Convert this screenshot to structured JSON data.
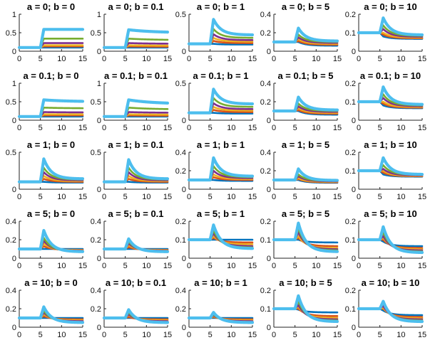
{
  "chart_data": {
    "type": "line",
    "grid": false,
    "legend": "none",
    "x_ticks": [
      0,
      5,
      10,
      15
    ],
    "xlim": [
      0,
      15
    ],
    "series_colors": [
      "#0072BD",
      "#D95319",
      "#EDB120",
      "#7E2F8E",
      "#77AC30",
      "#4DBEEE"
    ],
    "series_labels": [
      "",
      "",
      "",
      "",
      "",
      ""
    ],
    "panels": [
      {
        "title": "a = 0; b = 0",
        "ylim": [
          0,
          1
        ],
        "yticks": [
          0,
          0.5,
          1
        ],
        "base": 0.1,
        "model": "step",
        "peaks": [
          0.1,
          0.13,
          0.16,
          0.22,
          0.34,
          0.59
        ],
        "finals": [
          0.1,
          0.13,
          0.16,
          0.22,
          0.34,
          0.59
        ]
      },
      {
        "title": "a = 0; b = 0.1",
        "ylim": [
          0,
          1
        ],
        "yticks": [
          0,
          0.5,
          1
        ],
        "base": 0.1,
        "model": "step",
        "peaks": [
          0.1,
          0.13,
          0.16,
          0.22,
          0.34,
          0.58
        ],
        "finals": [
          0.1,
          0.12,
          0.15,
          0.2,
          0.3,
          0.5
        ]
      },
      {
        "title": "a = 0; b = 1",
        "ylim": [
          0,
          0.5
        ],
        "yticks": [
          0,
          0.5
        ],
        "base": 0.1,
        "model": "decay",
        "peaks": [
          0.1,
          0.14,
          0.18,
          0.23,
          0.3,
          0.43
        ],
        "finals": [
          0.09,
          0.11,
          0.13,
          0.15,
          0.18,
          0.22
        ]
      },
      {
        "title": "a = 0; b = 5",
        "ylim": [
          0,
          0.4
        ],
        "yticks": [
          0,
          0.2,
          0.4
        ],
        "base": 0.1,
        "model": "decay",
        "peaks": [
          0.1,
          0.11,
          0.13,
          0.15,
          0.18,
          0.25
        ],
        "finals": [
          0.06,
          0.07,
          0.08,
          0.09,
          0.1,
          0.11
        ]
      },
      {
        "title": "a = 0; b = 10",
        "ylim": [
          0,
          0.2
        ],
        "yticks": [
          0,
          0.1,
          0.2
        ],
        "base": 0.1,
        "model": "decay",
        "peaks": [
          0.08,
          0.09,
          0.1,
          0.12,
          0.14,
          0.18
        ],
        "finals": [
          0.067,
          0.07,
          0.074,
          0.078,
          0.083,
          0.088
        ]
      },
      {
        "title": "a = 0.1; b = 0",
        "ylim": [
          0,
          1
        ],
        "yticks": [
          0,
          0.5,
          1
        ],
        "base": 0.1,
        "model": "step",
        "peaks": [
          0.1,
          0.13,
          0.16,
          0.22,
          0.34,
          0.55
        ],
        "finals": [
          0.1,
          0.13,
          0.16,
          0.21,
          0.32,
          0.5
        ]
      },
      {
        "title": "a = 0.1; b = 0.1",
        "ylim": [
          0,
          1
        ],
        "yticks": [
          0,
          0.5,
          1
        ],
        "base": 0.1,
        "model": "step",
        "peaks": [
          0.1,
          0.13,
          0.16,
          0.22,
          0.34,
          0.55
        ],
        "finals": [
          0.1,
          0.12,
          0.15,
          0.2,
          0.29,
          0.44
        ]
      },
      {
        "title": "a = 0.1; b = 1",
        "ylim": [
          0,
          0.5
        ],
        "yticks": [
          0,
          0.5
        ],
        "base": 0.1,
        "model": "decay",
        "peaks": [
          0.1,
          0.14,
          0.18,
          0.23,
          0.3,
          0.42
        ],
        "finals": [
          0.09,
          0.11,
          0.13,
          0.15,
          0.18,
          0.22
        ]
      },
      {
        "title": "a = 0.1; b = 5",
        "ylim": [
          0,
          0.4
        ],
        "yticks": [
          0,
          0.2,
          0.4
        ],
        "base": 0.1,
        "model": "decay",
        "peaks": [
          0.1,
          0.11,
          0.13,
          0.15,
          0.18,
          0.25
        ],
        "finals": [
          0.06,
          0.07,
          0.08,
          0.09,
          0.1,
          0.11
        ]
      },
      {
        "title": "a = 0.1; b = 10",
        "ylim": [
          0,
          0.2
        ],
        "yticks": [
          0,
          0.1,
          0.2
        ],
        "base": 0.1,
        "model": "decay",
        "peaks": [
          0.08,
          0.09,
          0.1,
          0.12,
          0.14,
          0.18
        ],
        "finals": [
          0.065,
          0.068,
          0.072,
          0.076,
          0.08,
          0.085
        ]
      },
      {
        "title": "a = 1; b = 0",
        "ylim": [
          0,
          0.5
        ],
        "yticks": [
          0,
          0.5
        ],
        "base": 0.1,
        "model": "decay",
        "peaks": [
          0.1,
          0.14,
          0.18,
          0.23,
          0.29,
          0.41
        ],
        "finals": [
          0.09,
          0.1,
          0.11,
          0.12,
          0.13,
          0.14
        ]
      },
      {
        "title": "a = 1; b = 0.1",
        "ylim": [
          0,
          0.5
        ],
        "yticks": [
          0,
          0.5
        ],
        "base": 0.1,
        "model": "decay",
        "peaks": [
          0.1,
          0.14,
          0.18,
          0.23,
          0.29,
          0.4
        ],
        "finals": [
          0.09,
          0.1,
          0.11,
          0.12,
          0.13,
          0.14
        ]
      },
      {
        "title": "a = 1; b = 1",
        "ylim": [
          0,
          0.4
        ],
        "yticks": [
          0,
          0.2,
          0.4
        ],
        "base": 0.1,
        "model": "decay",
        "peaks": [
          0.1,
          0.13,
          0.16,
          0.2,
          0.25,
          0.34
        ],
        "finals": [
          0.09,
          0.1,
          0.11,
          0.12,
          0.13,
          0.14
        ]
      },
      {
        "title": "a = 1; b = 5",
        "ylim": [
          0,
          0.4
        ],
        "yticks": [
          0,
          0.2,
          0.4
        ],
        "base": 0.1,
        "model": "decay",
        "peaks": [
          0.1,
          0.11,
          0.12,
          0.14,
          0.16,
          0.22
        ],
        "finals": [
          0.07,
          0.075,
          0.08,
          0.085,
          0.09,
          0.095
        ]
      },
      {
        "title": "a = 1; b = 10",
        "ylim": [
          0,
          0.2
        ],
        "yticks": [
          0,
          0.1,
          0.2
        ],
        "base": 0.1,
        "model": "decay",
        "peaks": [
          0.08,
          0.09,
          0.1,
          0.11,
          0.13,
          0.17
        ],
        "finals": [
          0.068,
          0.07,
          0.072,
          0.075,
          0.078,
          0.08
        ]
      },
      {
        "title": "a = 5; b = 0",
        "ylim": [
          0,
          0.4
        ],
        "yticks": [
          0,
          0.2,
          0.4
        ],
        "base": 0.1,
        "model": "decay",
        "peaks": [
          0.1,
          0.13,
          0.16,
          0.19,
          0.22,
          0.3
        ],
        "finals": [
          0.1,
          0.09,
          0.085,
          0.08,
          0.075,
          0.07
        ]
      },
      {
        "title": "a = 5; b = 0.1",
        "ylim": [
          0,
          0.4
        ],
        "yticks": [
          0,
          0.2,
          0.4
        ],
        "base": 0.1,
        "model": "decay",
        "peaks": [
          0.1,
          0.12,
          0.14,
          0.16,
          0.18,
          0.21
        ],
        "finals": [
          0.1,
          0.09,
          0.085,
          0.08,
          0.075,
          0.07
        ]
      },
      {
        "title": "a = 5; b = 1",
        "ylim": [
          0,
          0.2
        ],
        "yticks": [
          0,
          0.1,
          0.2
        ],
        "base": 0.1,
        "model": "decay",
        "peaks": [
          0.1,
          0.11,
          0.12,
          0.135,
          0.15,
          0.18
        ],
        "finals": [
          0.1,
          0.085,
          0.075,
          0.065,
          0.058,
          0.052
        ]
      },
      {
        "title": "a = 5; b = 5",
        "ylim": [
          0,
          0.2
        ],
        "yticks": [
          0,
          0.1,
          0.2
        ],
        "base": 0.1,
        "model": "decay",
        "peaks": [
          0.1,
          0.11,
          0.12,
          0.14,
          0.16,
          0.19
        ],
        "finals": [
          0.085,
          0.065,
          0.055,
          0.048,
          0.042,
          0.035
        ]
      },
      {
        "title": "a = 5; b = 10",
        "ylim": [
          0,
          0.2
        ],
        "yticks": [
          0,
          0.1,
          0.2
        ],
        "base": 0.1,
        "model": "decay",
        "peaks": [
          0.09,
          0.1,
          0.11,
          0.12,
          0.14,
          0.17
        ],
        "finals": [
          0.065,
          0.055,
          0.048,
          0.042,
          0.036,
          0.03
        ]
      },
      {
        "title": "a = 10; b = 0",
        "ylim": [
          0,
          0.4
        ],
        "yticks": [
          0,
          0.2,
          0.4
        ],
        "base": 0.1,
        "model": "decay",
        "peaks": [
          0.1,
          0.12,
          0.14,
          0.16,
          0.18,
          0.22
        ],
        "finals": [
          0.1,
          0.085,
          0.075,
          0.065,
          0.055,
          0.05
        ]
      },
      {
        "title": "a = 10; b = 0.1",
        "ylim": [
          0,
          0.4
        ],
        "yticks": [
          0,
          0.2,
          0.4
        ],
        "base": 0.1,
        "model": "decay",
        "peaks": [
          0.1,
          0.11,
          0.13,
          0.14,
          0.16,
          0.19
        ],
        "finals": [
          0.1,
          0.085,
          0.075,
          0.065,
          0.055,
          0.05
        ]
      },
      {
        "title": "a = 10; b = 1",
        "ylim": [
          0,
          0.4
        ],
        "yticks": [
          0,
          0.2,
          0.4
        ],
        "base": 0.1,
        "model": "decay",
        "peaks": [
          0.1,
          0.11,
          0.12,
          0.13,
          0.14,
          0.16
        ],
        "finals": [
          0.1,
          0.085,
          0.075,
          0.065,
          0.055,
          0.05
        ]
      },
      {
        "title": "a = 10; b = 5",
        "ylim": [
          0,
          0.2
        ],
        "yticks": [
          0,
          0.1,
          0.2
        ],
        "base": 0.1,
        "model": "decay",
        "peaks": [
          0.095,
          0.1,
          0.11,
          0.12,
          0.14,
          0.17
        ],
        "finals": [
          0.08,
          0.06,
          0.05,
          0.042,
          0.036,
          0.03
        ]
      },
      {
        "title": "a = 10; b = 10",
        "ylim": [
          0,
          0.2
        ],
        "yticks": [
          0,
          0.1,
          0.2
        ],
        "base": 0.1,
        "model": "decay",
        "peaks": [
          0.09,
          0.1,
          0.105,
          0.115,
          0.13,
          0.14
        ],
        "finals": [
          0.065,
          0.055,
          0.048,
          0.042,
          0.036,
          0.03
        ]
      }
    ]
  }
}
